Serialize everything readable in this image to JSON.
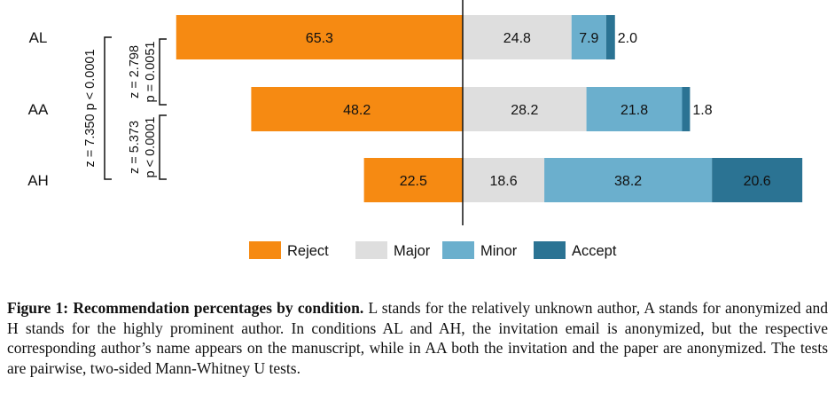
{
  "chart_data": {
    "type": "bar",
    "orientation": "horizontal",
    "stacked": true,
    "diverging": true,
    "categories": [
      "AL",
      "AA",
      "AH"
    ],
    "series": [
      {
        "name": "Reject",
        "color": "#f68a12",
        "side": "left",
        "values": [
          65.3,
          48.2,
          22.5
        ],
        "labels": [
          "65.3",
          "48.2",
          "22.5"
        ]
      },
      {
        "name": "Major",
        "color": "#dedede",
        "side": "right",
        "values": [
          24.8,
          28.2,
          18.6
        ],
        "labels": [
          "24.8",
          "28.2",
          "18.6"
        ]
      },
      {
        "name": "Minor",
        "color": "#6bafcd",
        "side": "right",
        "values": [
          7.9,
          21.8,
          38.2
        ],
        "labels": [
          "7.9",
          "21.8",
          "38.2"
        ]
      },
      {
        "name": "Accept",
        "color": "#2b7393",
        "side": "right",
        "values": [
          2.0,
          1.8,
          20.6
        ],
        "labels": [
          "2.0",
          "1.8",
          "20.6"
        ]
      }
    ],
    "legend_position": "bottom",
    "annotations": [
      {
        "between": [
          "AL",
          "AA"
        ],
        "lines": [
          "z = 2.798",
          "p = 0.0051"
        ]
      },
      {
        "between": [
          "AA",
          "AH"
        ],
        "lines": [
          "z = 5.373",
          "p < 0.0001"
        ]
      },
      {
        "between": [
          "AL",
          "AH"
        ],
        "lines": [
          "z = 7.350 p < 0.0001"
        ]
      }
    ]
  },
  "caption": {
    "lead": "Figure 1: Recommendation percentages by condition.",
    "text": " L stands for the relatively unknown author, A stands for anonymized and H stands for the highly prominent author. In conditions AL and AH, the invitation email is anonymized, but the respective corresponding author’s name appears on the manuscript, while in AA both the invitation and the paper are anonymized. The tests are pairwise, two-sided Mann-Whitney U tests."
  }
}
